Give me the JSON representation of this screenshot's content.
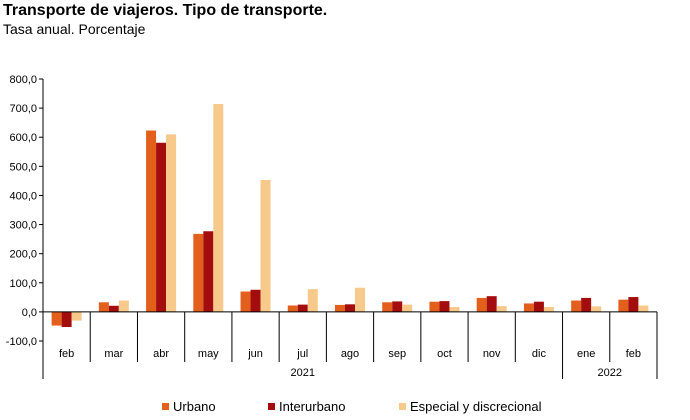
{
  "title": "Transporte de viajeros. Tipo de transporte.",
  "subtitle": "Tasa anual. Porcentaje",
  "chart_data": {
    "type": "bar",
    "title": "Transporte de viajeros. Tipo de transporte.",
    "subtitle": "Tasa anual. Porcentaje",
    "categories": [
      "feb",
      "mar",
      "abr",
      "may",
      "jun",
      "jul",
      "ago",
      "sep",
      "oct",
      "nov",
      "dic",
      "ene",
      "feb"
    ],
    "year_groups": [
      {
        "label": "2021",
        "span": 11
      },
      {
        "label": "2022",
        "span": 2
      }
    ],
    "ylim": [
      -100,
      800
    ],
    "yticks": [
      -100,
      0,
      100,
      200,
      300,
      400,
      500,
      600,
      700,
      800
    ],
    "ytick_labels": [
      "-100,0",
      "0,0",
      "100,0",
      "200,0",
      "300,0",
      "400,0",
      "500,0",
      "600,0",
      "700,0",
      "800,0"
    ],
    "grid": false,
    "legend_position": "bottom",
    "series": [
      {
        "name": "Urbano",
        "color": "#E35F1C",
        "values": [
          -47,
          33,
          623,
          268,
          70,
          22,
          24,
          33,
          35,
          48,
          29,
          39,
          42
        ]
      },
      {
        "name": "Interurbano",
        "color": "#A40D0D",
        "values": [
          -52,
          21,
          581,
          277,
          76,
          25,
          26,
          36,
          37,
          54,
          35,
          48,
          51
        ]
      },
      {
        "name": "Especial y discrecional",
        "color": "#F7C98A",
        "values": [
          -30,
          39,
          610,
          714,
          453,
          78,
          83,
          25,
          17,
          20,
          17,
          19,
          22
        ]
      }
    ]
  }
}
